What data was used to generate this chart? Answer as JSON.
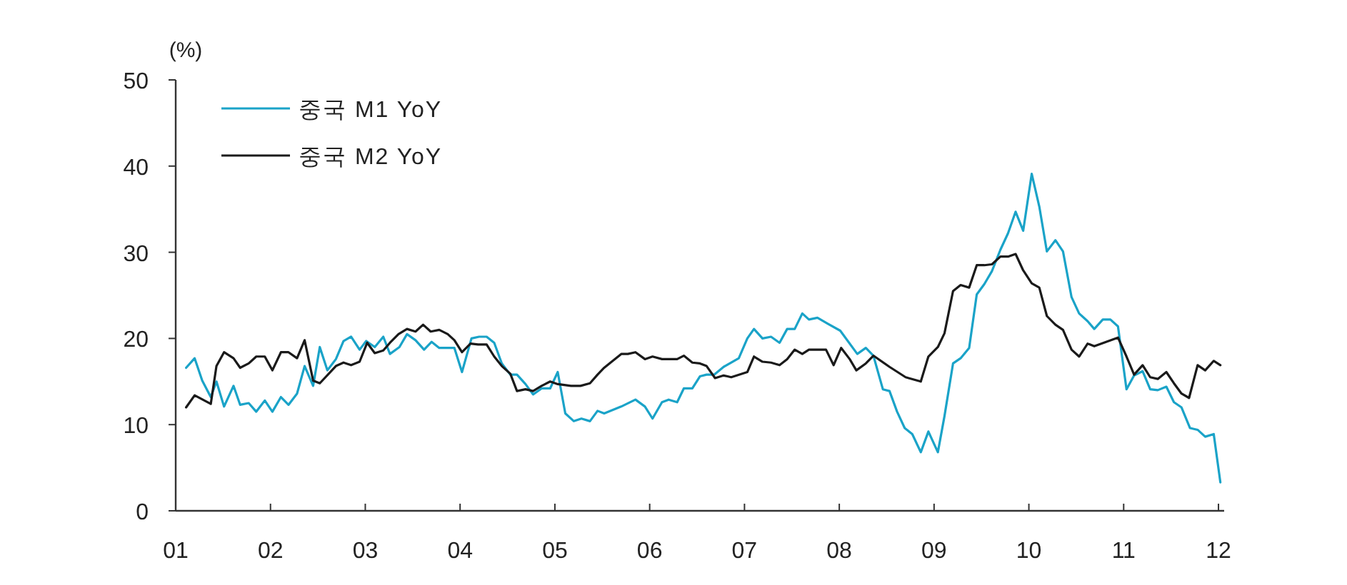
{
  "chart_data": {
    "type": "line",
    "ylabel": "(%)",
    "xlim": [
      2001,
      2012.06
    ],
    "ylim": [
      0,
      50
    ],
    "xticks": [
      {
        "value": 2001,
        "label": "01"
      },
      {
        "value": 2002,
        "label": "02"
      },
      {
        "value": 2003,
        "label": "03"
      },
      {
        "value": 2004,
        "label": "04"
      },
      {
        "value": 2005,
        "label": "05"
      },
      {
        "value": 2006,
        "label": "06"
      },
      {
        "value": 2007,
        "label": "07"
      },
      {
        "value": 2008,
        "label": "08"
      },
      {
        "value": 2009,
        "label": "09"
      },
      {
        "value": 2010,
        "label": "10"
      },
      {
        "value": 2011,
        "label": "11"
      },
      {
        "value": 2012,
        "label": "12"
      }
    ],
    "yticks": [
      0,
      10,
      20,
      30,
      40,
      50
    ],
    "grid": false,
    "legend": "top left",
    "marker": "none",
    "line_style": "solid",
    "series": [
      {
        "name": "중국 M1 YoY",
        "color": "#1aa3c8",
        "x": [
          2001.11,
          2001.2,
          2001.28,
          2001.37,
          2001.43,
          2001.51,
          2001.61,
          2001.68,
          2001.77,
          2001.85,
          2001.94,
          2002.02,
          2002.11,
          2002.19,
          2002.28,
          2002.36,
          2002.45,
          2002.52,
          2002.6,
          2002.69,
          2002.77,
          2002.85,
          2002.94,
          2003.01,
          2003.1,
          2003.19,
          2003.26,
          2003.36,
          2003.44,
          2003.53,
          2003.62,
          2003.7,
          2003.78,
          2003.94,
          2004.02,
          2004.12,
          2004.2,
          2004.28,
          2004.36,
          2004.44,
          2004.53,
          2004.6,
          2004.69,
          2004.77,
          2004.86,
          2004.95,
          2005.03,
          2005.11,
          2005.2,
          2005.28,
          2005.37,
          2005.45,
          2005.52,
          2005.7,
          2005.85,
          2005.95,
          2006.03,
          2006.13,
          2006.2,
          2006.29,
          2006.36,
          2006.45,
          2006.53,
          2006.6,
          2006.68,
          2006.78,
          2006.94,
          2007.03,
          2007.1,
          2007.19,
          2007.28,
          2007.37,
          2007.45,
          2007.53,
          2007.61,
          2007.68,
          2007.77,
          2007.88,
          2008.01,
          2008.19,
          2008.28,
          2008.36,
          2008.46,
          2008.53,
          2008.61,
          2008.69,
          2008.77,
          2008.86,
          2008.94,
          2009.04,
          2009.11,
          2009.2,
          2009.28,
          2009.37,
          2009.45,
          2009.53,
          2009.61,
          2009.7,
          2009.78,
          2009.86,
          2009.94,
          2010.03,
          2010.11,
          2010.19,
          2010.28,
          2010.36,
          2010.45,
          2010.53,
          2010.62,
          2010.69,
          2010.78,
          2010.86,
          2010.94,
          2011.03,
          2011.11,
          2011.2,
          2011.28,
          2011.36,
          2011.45,
          2011.53,
          2011.61,
          2011.7,
          2011.78,
          2011.86,
          2011.95,
          2012.02
        ],
        "values": [
          16.6,
          17.7,
          15.1,
          13.2,
          15.0,
          12.1,
          14.5,
          12.3,
          12.5,
          11.5,
          12.8,
          11.5,
          13.2,
          12.3,
          13.6,
          16.8,
          14.5,
          19.0,
          16.3,
          17.6,
          19.7,
          20.2,
          18.7,
          19.7,
          19.0,
          20.2,
          18.2,
          19.0,
          20.5,
          19.8,
          18.7,
          19.6,
          18.9,
          18.9,
          16.1,
          20.0,
          20.2,
          20.2,
          19.5,
          17.1,
          15.8,
          15.8,
          14.7,
          13.5,
          14.2,
          14.2,
          16.1,
          11.3,
          10.4,
          10.7,
          10.4,
          11.6,
          11.3,
          12.1,
          12.9,
          12.1,
          10.7,
          12.6,
          12.9,
          12.6,
          14.2,
          14.2,
          15.6,
          15.8,
          15.8,
          16.7,
          17.7,
          20.0,
          21.1,
          20.0,
          20.2,
          19.5,
          21.1,
          21.1,
          22.9,
          22.2,
          22.4,
          21.7,
          20.9,
          18.2,
          18.9,
          18.0,
          14.1,
          13.9,
          11.5,
          9.6,
          8.9,
          6.8,
          9.2,
          6.8,
          11.0,
          17.1,
          17.7,
          18.9,
          25.1,
          26.3,
          27.8,
          30.3,
          32.2,
          34.7,
          32.5,
          39.1,
          35.3,
          30.1,
          31.4,
          30.1,
          24.8,
          22.9,
          22.0,
          21.1,
          22.2,
          22.2,
          21.4,
          14.1,
          15.7,
          16.2,
          14.1,
          14.0,
          14.4,
          12.6,
          12.0,
          9.6,
          9.4,
          8.6,
          8.9,
          3.3
        ]
      },
      {
        "name": "중국 M2 YoY",
        "color": "#1a1a1a",
        "x": [
          2001.11,
          2001.2,
          2001.37,
          2001.43,
          2001.51,
          2001.61,
          2001.68,
          2001.77,
          2001.85,
          2001.94,
          2002.02,
          2002.11,
          2002.19,
          2002.28,
          2002.36,
          2002.45,
          2002.52,
          2002.69,
          2002.77,
          2002.85,
          2002.94,
          2003.02,
          2003.1,
          2003.19,
          2003.26,
          2003.35,
          2003.44,
          2003.53,
          2003.61,
          2003.69,
          2003.78,
          2003.87,
          2003.94,
          2004.02,
          2004.11,
          2004.19,
          2004.28,
          2004.36,
          2004.44,
          2004.53,
          2004.6,
          2004.69,
          2004.77,
          2004.86,
          2004.95,
          2005.03,
          2005.17,
          2005.27,
          2005.37,
          2005.45,
          2005.52,
          2005.7,
          2005.77,
          2005.85,
          2005.95,
          2006.03,
          2006.13,
          2006.29,
          2006.36,
          2006.45,
          2006.53,
          2006.6,
          2006.69,
          2006.78,
          2006.86,
          2007.03,
          2007.1,
          2007.19,
          2007.28,
          2007.37,
          2007.45,
          2007.53,
          2007.61,
          2007.68,
          2007.86,
          2007.94,
          2008.02,
          2008.11,
          2008.18,
          2008.28,
          2008.36,
          2008.53,
          2008.7,
          2008.86,
          2008.94,
          2009.04,
          2009.11,
          2009.2,
          2009.28,
          2009.37,
          2009.45,
          2009.53,
          2009.61,
          2009.7,
          2009.78,
          2009.86,
          2009.94,
          2010.03,
          2010.11,
          2010.19,
          2010.28,
          2010.36,
          2010.45,
          2010.53,
          2010.62,
          2010.69,
          2010.94,
          2011.03,
          2011.11,
          2011.2,
          2011.28,
          2011.36,
          2011.45,
          2011.53,
          2011.61,
          2011.69,
          2011.78,
          2011.86,
          2011.95,
          2012.02
        ],
        "values": [
          12.0,
          13.4,
          12.4,
          16.8,
          18.4,
          17.7,
          16.6,
          17.1,
          17.9,
          17.9,
          16.3,
          18.4,
          18.4,
          17.7,
          19.8,
          15.1,
          14.8,
          16.8,
          17.2,
          16.9,
          17.3,
          19.5,
          18.3,
          18.6,
          19.5,
          20.5,
          21.1,
          20.8,
          21.6,
          20.8,
          21.0,
          20.5,
          19.8,
          18.4,
          19.4,
          19.3,
          19.3,
          17.9,
          16.8,
          15.9,
          13.9,
          14.1,
          13.9,
          14.5,
          15.0,
          14.7,
          14.5,
          14.5,
          14.8,
          15.8,
          16.6,
          18.2,
          18.2,
          18.4,
          17.6,
          17.9,
          17.6,
          17.6,
          18.0,
          17.2,
          17.1,
          16.8,
          15.4,
          15.7,
          15.5,
          16.1,
          17.9,
          17.3,
          17.2,
          16.9,
          17.6,
          18.7,
          18.2,
          18.7,
          18.7,
          16.9,
          18.9,
          17.6,
          16.3,
          17.1,
          18.0,
          16.7,
          15.5,
          15.0,
          17.9,
          19.0,
          20.6,
          25.5,
          26.2,
          25.9,
          28.5,
          28.5,
          28.6,
          29.5,
          29.5,
          29.8,
          27.9,
          26.4,
          25.9,
          22.6,
          21.6,
          21.0,
          18.7,
          17.9,
          19.4,
          19.1,
          20.1,
          17.9,
          15.8,
          16.9,
          15.5,
          15.3,
          16.1,
          14.8,
          13.6,
          13.1,
          16.9,
          16.3,
          17.4,
          16.9
        ]
      }
    ]
  }
}
